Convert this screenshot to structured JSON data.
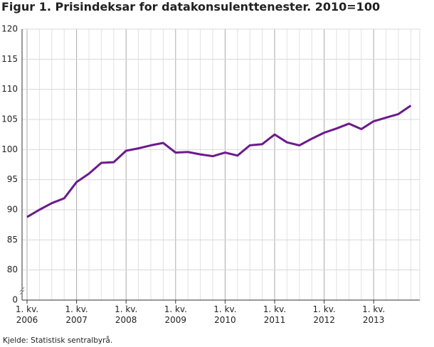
{
  "chart_data": {
    "type": "line",
    "title": "Figur 1. Prisindeksar for datakonsulenttenester. 2010=100",
    "source": "Kjelde: Statistisk sentralbyrå.",
    "categories": [
      "1. kv.\n2006",
      null,
      null,
      null,
      "1. kv.\n2007",
      null,
      null,
      null,
      "1. kv.\n2008",
      null,
      null,
      null,
      "1. kv.\n2009",
      null,
      null,
      null,
      "1. kv.\n2010",
      null,
      null,
      null,
      "1. kv.\n2011",
      null,
      null,
      null,
      "1. kv.\n2012",
      null,
      null,
      null,
      "1. kv.\n2013",
      null,
      null,
      null
    ],
    "series": [
      {
        "name": "Prisindeks",
        "color": "#6b1b8c",
        "values": [
          88.8,
          90.0,
          91.1,
          91.9,
          94.6,
          96.0,
          97.8,
          97.9,
          99.8,
          100.2,
          100.7,
          101.1,
          99.5,
          99.6,
          99.2,
          98.9,
          99.5,
          99.0,
          100.7,
          100.9,
          102.5,
          101.2,
          100.7,
          101.8,
          102.8,
          103.5,
          104.3,
          103.4,
          104.7,
          105.3,
          105.9,
          107.3
        ]
      }
    ],
    "ylim": [
      0,
      120
    ],
    "axis_break": [
      0,
      80
    ],
    "yticks": [
      0,
      80,
      85,
      90,
      95,
      100,
      105,
      110,
      115,
      120
    ],
    "grid": true
  }
}
